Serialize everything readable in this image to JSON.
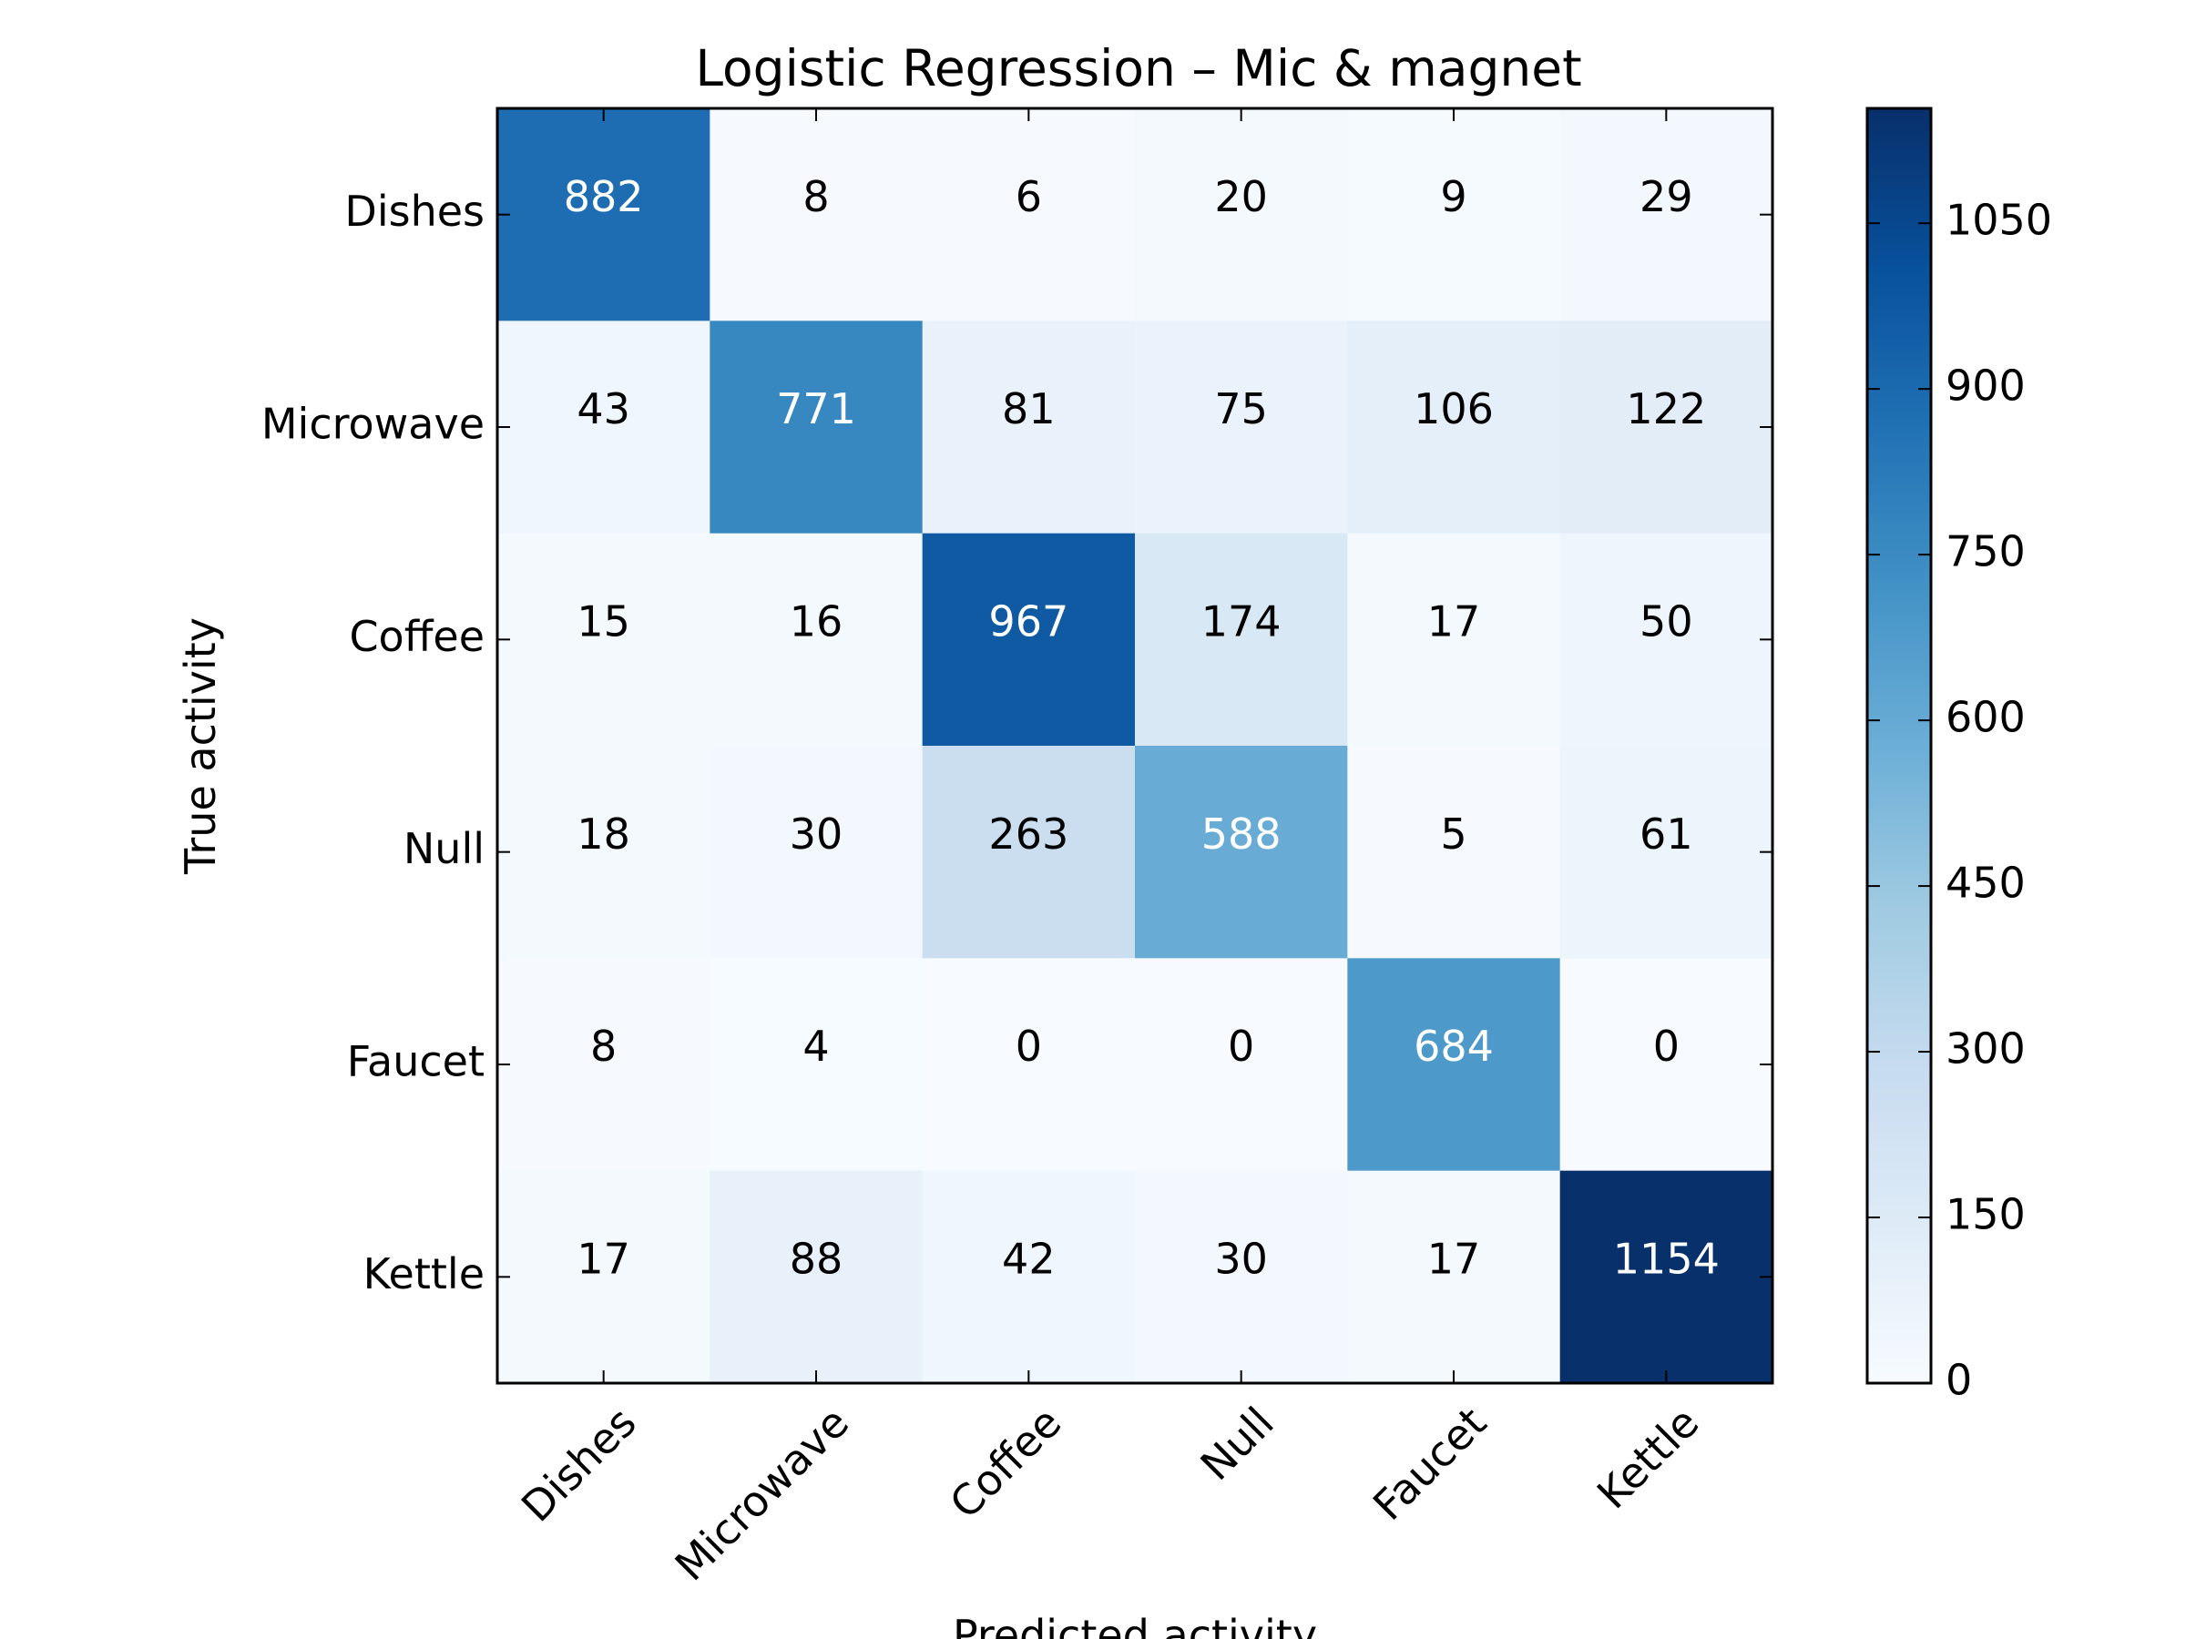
{
  "chart_data": {
    "type": "heatmap",
    "title": "Logistic Regression – Mic & magnet",
    "xlabel": "Predicted activity",
    "ylabel": "True activity",
    "x_categories": [
      "Dishes",
      "Microwave",
      "Coffee",
      "Null",
      "Faucet",
      "Kettle"
    ],
    "y_categories": [
      "Dishes",
      "Microwave",
      "Coffee",
      "Null",
      "Faucet",
      "Kettle"
    ],
    "matrix": [
      [
        882,
        8,
        6,
        20,
        9,
        29
      ],
      [
        43,
        771,
        81,
        75,
        106,
        122
      ],
      [
        15,
        16,
        967,
        174,
        17,
        50
      ],
      [
        18,
        30,
        263,
        588,
        5,
        61
      ],
      [
        8,
        4,
        0,
        0,
        684,
        0
      ],
      [
        17,
        88,
        42,
        30,
        17,
        1154
      ]
    ],
    "colormap": "Blues",
    "colorbar": {
      "range": [
        0,
        1154
      ],
      "ticks": [
        0,
        150,
        300,
        450,
        600,
        750,
        900,
        1050
      ]
    },
    "grid": false
  }
}
